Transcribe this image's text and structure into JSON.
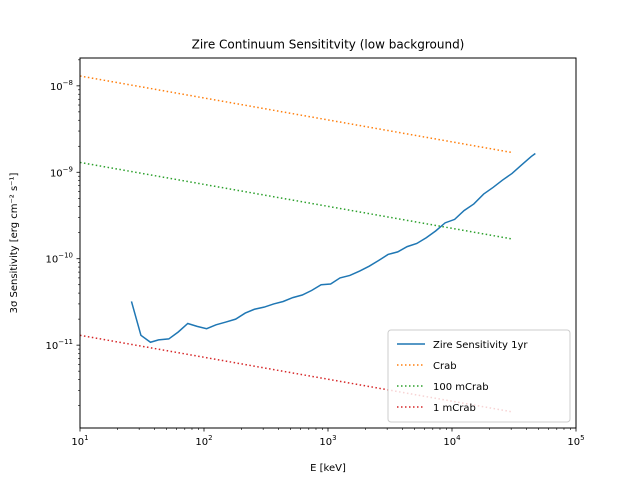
{
  "chart_data": {
    "type": "line",
    "title": "Zire Continuum Sensititvity (low background)",
    "xlabel": "E [keV]",
    "ylabel": "3σ Sensitivity [erg cm⁻² s⁻¹]",
    "xscale": "log",
    "yscale": "log",
    "xlim": [
      10,
      100000
    ],
    "ylim": [
      1.1e-12,
      2.1e-08
    ],
    "x_ticks": [
      {
        "value": 10,
        "base": "10",
        "exp": "1"
      },
      {
        "value": 100,
        "base": "10",
        "exp": "2"
      },
      {
        "value": 1000,
        "base": "10",
        "exp": "3"
      },
      {
        "value": 10000,
        "base": "10",
        "exp": "4"
      },
      {
        "value": 100000,
        "base": "10",
        "exp": "5"
      }
    ],
    "y_ticks": [
      {
        "value": 1e-11,
        "base": "10",
        "exp": "−11"
      },
      {
        "value": 1e-10,
        "base": "10",
        "exp": "−10"
      },
      {
        "value": 1e-09,
        "base": "10",
        "exp": "−9"
      },
      {
        "value": 1e-08,
        "base": "10",
        "exp": "−8"
      }
    ],
    "grid": false,
    "legend_position": "lower-right",
    "series": [
      {
        "name": "Zire Sensitivity 1yr",
        "color": "#1f77b4",
        "style": "solid",
        "x": [
          26,
          31,
          37,
          43,
          52,
          62,
          74,
          88,
          105,
          125,
          150,
          180,
          215,
          255,
          305,
          365,
          435,
          520,
          620,
          740,
          880,
          1050,
          1250,
          1500,
          1800,
          2150,
          2550,
          3050,
          3650,
          4350,
          5200,
          6200,
          7400,
          8800,
          10500,
          12500,
          15000,
          18000,
          21500,
          25500,
          30500,
          36500,
          43500,
          47000
        ],
        "y": [
          3.2e-11,
          1.3e-11,
          1.08e-11,
          1.15e-11,
          1.18e-11,
          1.42e-11,
          1.78e-11,
          1.65e-11,
          1.55e-11,
          1.72e-11,
          1.85e-11,
          2e-11,
          2.35e-11,
          2.6e-11,
          2.75e-11,
          3e-11,
          3.2e-11,
          3.55e-11,
          3.8e-11,
          4.3e-11,
          5e-11,
          5.1e-11,
          6e-11,
          6.4e-11,
          7.2e-11,
          8.2e-11,
          9.5e-11,
          1.12e-10,
          1.2e-10,
          1.38e-10,
          1.5e-10,
          1.75e-10,
          2.1e-10,
          2.6e-10,
          2.85e-10,
          3.6e-10,
          4.3e-10,
          5.6e-10,
          6.7e-10,
          8.1e-10,
          9.7e-10,
          1.22e-09,
          1.52e-09,
          1.65e-09
        ]
      },
      {
        "name": "Crab",
        "color": "#ff7f0e",
        "style": "dotted",
        "x": [
          10,
          30000
        ],
        "y": [
          1.3e-08,
          1.7e-09
        ]
      },
      {
        "name": "100 mCrab",
        "color": "#2ca02c",
        "style": "dotted",
        "x": [
          10,
          30000
        ],
        "y": [
          1.3e-09,
          1.7e-10
        ]
      },
      {
        "name": "1 mCrab",
        "color": "#d62728",
        "style": "dotted",
        "x": [
          10,
          30000
        ],
        "y": [
          1.3e-11,
          1.7e-12
        ]
      }
    ]
  }
}
